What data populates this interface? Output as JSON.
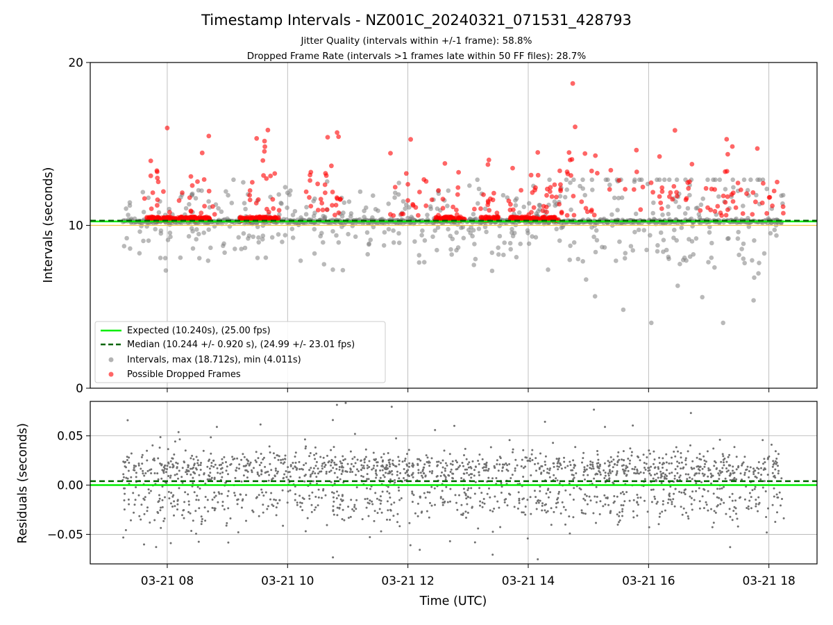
{
  "chart_data": {
    "title": "Timestamp Intervals - NZ001C_20240321_071531_428793",
    "subtitles": [
      "Jitter Quality (intervals within +/-1 frame): 58.8%",
      "Dropped Frame Rate (intervals >1 frames late within 50 FF files): 28.7%"
    ],
    "xlabel": "Time (UTC)",
    "x_ticks": [
      "03-21 08",
      "03-21 10",
      "03-21 12",
      "03-21 14",
      "03-21 16",
      "03-21 18"
    ],
    "x_tick_hours": [
      8,
      10,
      12,
      14,
      16,
      18
    ],
    "x_range_hours": [
      6.72,
      18.8
    ],
    "data_range_hours": [
      7.26,
      18.25
    ],
    "grid": true,
    "panels": [
      {
        "id": "intervals",
        "type": "scatter",
        "ylabel": "Intervals (seconds)",
        "ylim": [
          0,
          20
        ],
        "y_ticks": [
          0,
          10
        ],
        "y_tick_labels": [
          "0",
          "10"
        ],
        "y_top_label": "20",
        "expected_line": {
          "value": 10.24,
          "color": "#00ee00",
          "style": "solid"
        },
        "median_line": {
          "value": 10.244,
          "color": "#006400",
          "style": "dashed"
        },
        "reference_line": {
          "value": 10.0,
          "color": "#f5c242"
        },
        "series": [
          {
            "name": "Intervals, max (18.712s), min (4.011s)",
            "color": "#808080",
            "max": 18.712,
            "min": 4.011,
            "typical": 10.244
          },
          {
            "name": "Possible Dropped Frames",
            "color": "#ff0000",
            "max": 18.712,
            "band_min": 10.3
          }
        ],
        "legend": {
          "position": "lower-left",
          "entries": [
            {
              "label": "Expected (10.240s), (25.00 fps)",
              "kind": "line",
              "color": "#00ee00",
              "style": "solid"
            },
            {
              "label": "Median (10.244 +/- 0.920 s), (24.99 +/- 23.01 fps)",
              "kind": "line",
              "color": "#006400",
              "style": "dashed"
            },
            {
              "label": "Intervals, max (18.712s), min (4.011s)",
              "kind": "marker",
              "color": "#808080"
            },
            {
              "label": "Possible Dropped Frames",
              "kind": "marker",
              "color": "#ff0000"
            }
          ]
        }
      },
      {
        "id": "residuals",
        "type": "scatter",
        "ylabel": "Residuals (seconds)",
        "ylim": [
          -0.08,
          0.085
        ],
        "y_ticks": [
          0.05,
          0.0,
          -0.05
        ],
        "y_tick_labels": [
          "0.05",
          "0.00",
          "−0.05"
        ],
        "zero_line": {
          "value": 0.0,
          "color": "#00ee00",
          "style": "solid"
        },
        "median_line": {
          "value": 0.004,
          "color": "#006400",
          "style": "dashed"
        },
        "series": [
          {
            "name": "Residuals",
            "color": "#707070",
            "typical_range": [
              -0.03,
              0.04
            ]
          }
        ]
      }
    ]
  }
}
